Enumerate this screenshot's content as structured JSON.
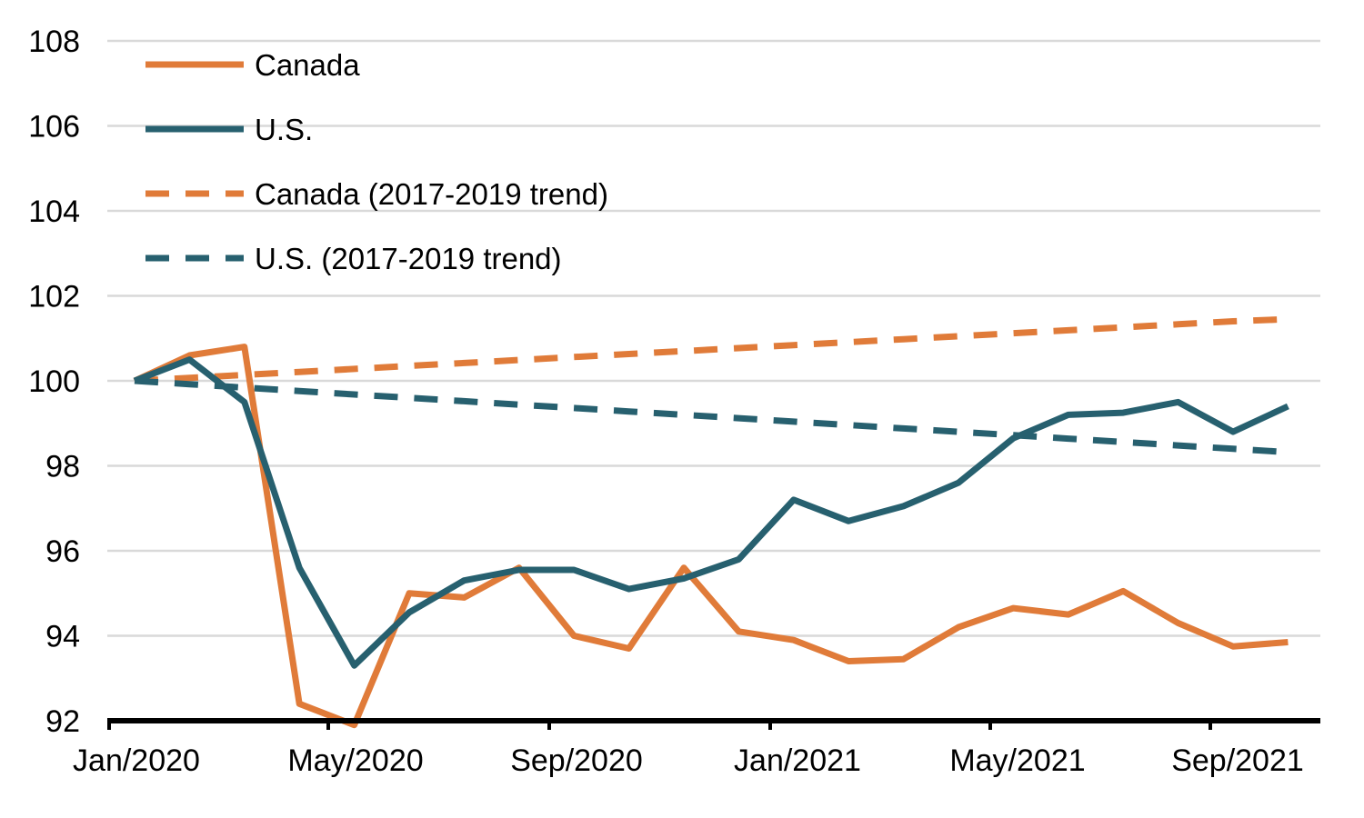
{
  "chart_data": {
    "type": "line",
    "title": "",
    "xlabel": "",
    "ylabel": "",
    "x": [
      "Jan/2020",
      "Feb/2020",
      "Mar/2020",
      "Apr/2020",
      "May/2020",
      "Jun/2020",
      "Jul/2020",
      "Aug/2020",
      "Sep/2020",
      "Oct/2020",
      "Nov/2020",
      "Dec/2020",
      "Jan/2021",
      "Feb/2021",
      "Mar/2021",
      "Apr/2021",
      "May/2021",
      "Jun/2021",
      "Jul/2021",
      "Aug/2021",
      "Sep/2021",
      "Oct/2021"
    ],
    "x_tick_labels": [
      "Jan/2020",
      "May/2020",
      "Sep/2020",
      "Jan/2021",
      "May/2021",
      "Sep/2021"
    ],
    "ylim": [
      92,
      108
    ],
    "y_ticks": [
      92,
      94,
      96,
      98,
      100,
      102,
      104,
      106,
      108
    ],
    "grid": "horizontal",
    "legend_position": "top-left",
    "series": [
      {
        "name": "Canada",
        "color": "#E07B39",
        "style": "solid",
        "values": [
          100.0,
          100.6,
          100.8,
          92.4,
          91.9,
          95.0,
          94.9,
          95.6,
          94.0,
          93.7,
          95.6,
          94.1,
          93.9,
          93.4,
          93.45,
          94.2,
          94.65,
          94.5,
          95.05,
          94.3,
          93.75,
          93.85
        ]
      },
      {
        "name": "U.S.",
        "color": "#27606F",
        "style": "solid",
        "values": [
          100.0,
          100.5,
          99.5,
          95.6,
          93.3,
          94.55,
          95.3,
          95.55,
          95.55,
          95.1,
          95.35,
          95.8,
          97.2,
          96.7,
          97.05,
          97.6,
          98.65,
          99.2,
          99.25,
          99.5,
          98.8,
          99.4
        ]
      },
      {
        "name": "Canada (2017-2019 trend)",
        "color": "#E07B39",
        "style": "dashed",
        "values": [
          100.0,
          100.07,
          100.14,
          100.21,
          100.28,
          100.35,
          100.42,
          100.49,
          100.56,
          100.63,
          100.7,
          100.77,
          100.84,
          100.91,
          100.98,
          101.05,
          101.12,
          101.19,
          101.26,
          101.33,
          101.4,
          101.45
        ]
      },
      {
        "name": "U.S. (2017-2019 trend)",
        "color": "#27606F",
        "style": "dashed",
        "values": [
          100.0,
          99.92,
          99.84,
          99.76,
          99.68,
          99.6,
          99.52,
          99.44,
          99.36,
          99.28,
          99.2,
          99.12,
          99.04,
          98.96,
          98.88,
          98.8,
          98.72,
          98.64,
          98.56,
          98.48,
          98.4,
          98.32
        ]
      }
    ]
  }
}
